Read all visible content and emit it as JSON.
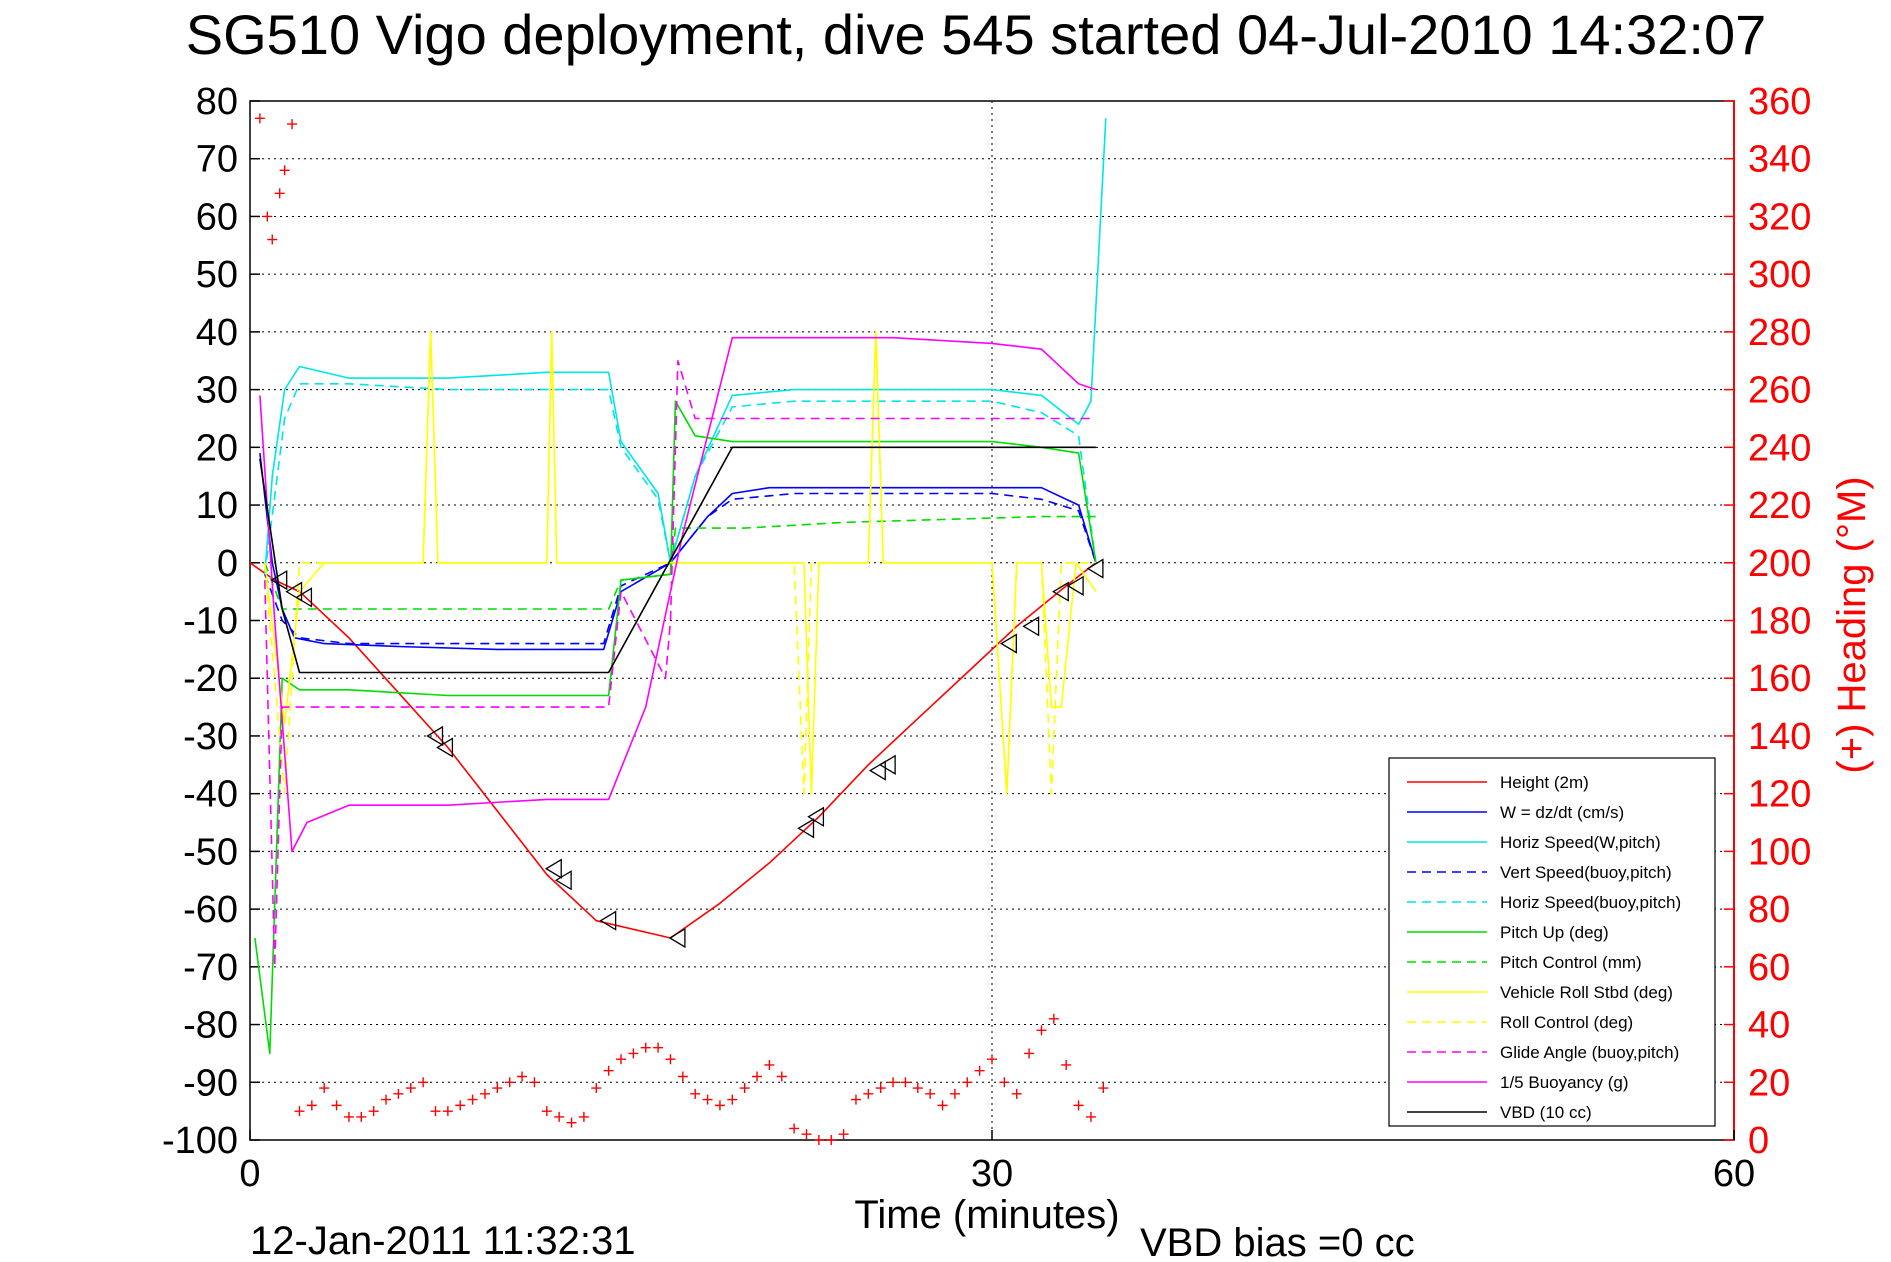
{
  "chart_data": {
    "type": "line",
    "title": "SG510 Vigo deployment, dive 545 started 04-Jul-2010 14:32:07",
    "xlabel": "Time (minutes)",
    "ylabel_right": "(+) Heading (°M)",
    "footer_left": "12-Jan-2011 11:32:31",
    "footer_right": "VBD bias =0 cc",
    "xlim": [
      0,
      60
    ],
    "ylim": [
      -100,
      80
    ],
    "ylim_right": [
      0,
      360
    ],
    "x_ticks": [
      "0",
      "30",
      "60"
    ],
    "y_ticks": [
      "80",
      "70",
      "60",
      "50",
      "40",
      "30",
      "20",
      "10",
      "0",
      "-10",
      "-20",
      "-30",
      "-40",
      "-50",
      "-60",
      "-70",
      "-80",
      "-90",
      "-100"
    ],
    "y_ticks_right": [
      "360",
      "340",
      "320",
      "300",
      "280",
      "260",
      "240",
      "220",
      "200",
      "180",
      "160",
      "140",
      "120",
      "100",
      "80",
      "60",
      "40",
      "20",
      "0"
    ],
    "grid": true,
    "legend_position": "bottom-right",
    "series": [
      {
        "name": "Height (2m)",
        "color": "#ff0000",
        "style": "solid",
        "x": [
          0,
          1,
          2,
          4,
          8,
          12,
          14,
          17,
          19,
          21,
          23,
          25,
          27,
          29,
          31,
          33,
          34.2
        ],
        "y": [
          0,
          -3,
          -5,
          -13,
          -32,
          -54,
          -62,
          -65,
          -59,
          -52,
          -44,
          -35,
          -27,
          -19,
          -11,
          -4,
          0
        ]
      },
      {
        "name": "W = dz/dt (cm/s)",
        "color": "#0000ff",
        "style": "solid",
        "x": [
          0.4,
          0.9,
          1.3,
          1.8,
          3,
          6,
          10,
          14.3,
          15,
          17,
          18.5,
          19.5,
          21,
          24,
          27,
          30,
          32,
          33.5,
          34.2
        ],
        "y": [
          19,
          0,
          -8,
          -13,
          -14,
          -14.5,
          -15,
          -15,
          -5,
          0,
          8,
          12,
          13,
          13,
          13,
          13,
          13,
          10,
          0
        ]
      },
      {
        "name": "Horiz Speed(W,pitch)",
        "color": "#00e5e5",
        "style": "solid",
        "x": [
          0.6,
          0.9,
          1.4,
          2,
          4,
          8,
          12,
          14.5,
          15,
          16.5,
          17,
          18,
          19.5,
          22,
          26,
          30,
          32,
          33.5,
          34,
          34.6
        ],
        "y": [
          -2,
          15,
          30,
          34,
          32,
          32,
          33,
          33,
          21,
          12,
          0,
          15,
          29,
          30,
          30,
          30,
          29,
          24,
          28,
          77
        ]
      },
      {
        "name": "Vert Speed(buoy,pitch)",
        "color": "#0000ff",
        "style": "dashed",
        "x": [
          0.6,
          1.3,
          2,
          4,
          8,
          12,
          14.3,
          15,
          17,
          18.5,
          19.5,
          22,
          26,
          30,
          32,
          33.5,
          34.2
        ],
        "y": [
          -2,
          -10,
          -13,
          -14,
          -14,
          -14,
          -14,
          -4,
          0,
          8,
          11,
          12,
          12,
          12,
          11,
          9,
          0
        ]
      },
      {
        "name": "Horiz Speed(buoy,pitch)",
        "color": "#00e5e5",
        "style": "dashed",
        "x": [
          0.6,
          1.4,
          2,
          4,
          8,
          12,
          14.5,
          15,
          16.5,
          17,
          18,
          19.5,
          22,
          26,
          30,
          32,
          33.5,
          34.2
        ],
        "y": [
          -2,
          25,
          31,
          31,
          30,
          30,
          30,
          20,
          11,
          0,
          15,
          27,
          28,
          28,
          28,
          26,
          22,
          0
        ]
      },
      {
        "name": "Pitch Up (deg)",
        "color": "#00dd00",
        "style": "solid",
        "x": [
          0.2,
          0.8,
          1.3,
          2,
          4,
          8,
          12,
          14.5,
          15,
          17,
          17.2,
          18,
          19.5,
          22,
          26,
          30,
          32,
          33.5,
          34.2
        ],
        "y": [
          -65,
          -85,
          -20,
          -22,
          -22,
          -23,
          -23,
          -23,
          -3,
          -2,
          28,
          22,
          21,
          21,
          21,
          21,
          20,
          19,
          0
        ]
      },
      {
        "name": "Pitch Control (mm)",
        "color": "#00dd00",
        "style": "dashed",
        "x": [
          0.6,
          1.3,
          2,
          4,
          8,
          12,
          14.5,
          15,
          17,
          17.2,
          18,
          20,
          24,
          28,
          32,
          34.2
        ],
        "y": [
          0,
          -8,
          -8,
          -8,
          -8,
          -8,
          -8,
          -3,
          -2,
          6,
          6,
          6,
          7,
          7.5,
          8,
          8
        ]
      },
      {
        "name": "Vehicle Roll Stbd (deg)",
        "color": "#ffff00",
        "style": "solid",
        "x": [
          0.6,
          1.4,
          2,
          3,
          7,
          7.3,
          7.6,
          8,
          12,
          12.2,
          12.4,
          12.8,
          17,
          22,
          22.4,
          22.7,
          23,
          25,
          25.3,
          25.6,
          26,
          30,
          30.6,
          31,
          32,
          32.4,
          32.8,
          33.4,
          34.2
        ],
        "y": [
          0,
          -28,
          -5,
          0,
          0,
          40,
          0,
          0,
          0,
          40,
          0,
          0,
          0,
          0,
          0,
          -40,
          0,
          0,
          40,
          0,
          0,
          0,
          -40,
          0,
          0,
          -25,
          -25,
          0,
          -5
        ]
      },
      {
        "name": "Roll Control (deg)",
        "color": "#ffff00",
        "style": "dashed",
        "x": [
          0.6,
          1.4,
          2,
          7,
          7.3,
          7.6,
          12,
          12.2,
          12.4,
          22,
          22.4,
          22.7,
          25,
          25.3,
          25.6,
          30,
          30.6,
          31,
          32,
          32.4,
          32.8,
          34.2
        ],
        "y": [
          0,
          -40,
          0,
          0,
          40,
          0,
          0,
          40,
          0,
          0,
          -40,
          0,
          0,
          40,
          0,
          0,
          -40,
          0,
          0,
          -40,
          0,
          0
        ]
      },
      {
        "name": "Glide Angle (buoy,pitch)",
        "color": "#ff00ff",
        "style": "dashed",
        "x": [
          0.6,
          1,
          1.3,
          2,
          4,
          8,
          12,
          14.5,
          15,
          16.8,
          17,
          17.3,
          18,
          20,
          24,
          28,
          32,
          34
        ],
        "y": [
          -3,
          -70,
          -25,
          -25,
          -25,
          -25,
          -25,
          -25,
          -5,
          -20,
          -10,
          35,
          25,
          25,
          25,
          25,
          25,
          25
        ]
      },
      {
        "name": "1/5 Buoyancy (g)",
        "color": "#ff00ff",
        "style": "solid",
        "x": [
          0.4,
          1,
          1.7,
          2.3,
          4,
          8,
          12,
          14.5,
          16,
          17.5,
          19.5,
          22,
          26,
          30,
          32,
          33.5,
          34.2
        ],
        "y": [
          29,
          -10,
          -50,
          -45,
          -42,
          -42,
          -41,
          -41,
          -25,
          5,
          39,
          39,
          39,
          38,
          37,
          31,
          30
        ]
      },
      {
        "name": "VBD (10 cc)",
        "color": "#000000",
        "style": "solid",
        "x": [
          0.4,
          1.3,
          2,
          14.5,
          19.5,
          34.2
        ],
        "y": [
          18,
          -8,
          -19,
          -19,
          20,
          20
        ]
      },
      {
        "name": "Heading",
        "color": "#ff0000",
        "style": "plus",
        "axis": "right",
        "x": [
          0.4,
          0.7,
          0.9,
          1.2,
          1.4,
          1.7,
          2,
          2.5,
          3,
          3.5,
          4,
          4.5,
          5,
          5.5,
          6,
          6.5,
          7,
          7.5,
          8,
          8.5,
          9,
          9.5,
          10,
          10.5,
          11,
          11.5,
          12,
          12.5,
          13,
          13.5,
          14,
          14.5,
          15,
          15.5,
          16,
          16.5,
          17,
          17.5,
          18,
          18.5,
          19,
          19.5,
          20,
          20.5,
          21,
          21.5,
          22,
          22.5,
          23,
          23.5,
          24,
          24.5,
          25,
          25.5,
          26,
          26.5,
          27,
          27.5,
          28,
          28.5,
          29,
          29.5,
          30,
          30.5,
          31,
          31.5,
          32,
          32.5,
          33,
          33.5,
          34,
          34.5
        ],
        "y": [
          354,
          320,
          312,
          328,
          336,
          352,
          10,
          12,
          18,
          12,
          8,
          8,
          10,
          14,
          16,
          18,
          20,
          10,
          10,
          12,
          14,
          16,
          18,
          20,
          22,
          20,
          10,
          8,
          6,
          8,
          18,
          24,
          28,
          30,
          32,
          32,
          28,
          22,
          16,
          14,
          12,
          14,
          18,
          22,
          26,
          22,
          4,
          2,
          0,
          0,
          2,
          14,
          16,
          18,
          20,
          20,
          18,
          16,
          12,
          16,
          20,
          24,
          28,
          20,
          16,
          30,
          38,
          42,
          26,
          12,
          8,
          18
        ]
      }
    ],
    "markers": {
      "name": "Height triangles",
      "color": "#000000",
      "x": [
        1.2,
        1.8,
        2.2,
        7.5,
        7.9,
        12.3,
        12.7,
        14.5,
        17.3,
        22.5,
        22.9,
        25.4,
        25.8,
        30.7,
        31.6,
        32.8,
        33.4,
        34.2
      ],
      "y": [
        -3,
        -5,
        -6,
        -30,
        -32,
        -53,
        -55,
        -62,
        -65,
        -46,
        -44,
        -36,
        -35,
        -14,
        -11,
        -5,
        -4,
        -1
      ]
    }
  }
}
